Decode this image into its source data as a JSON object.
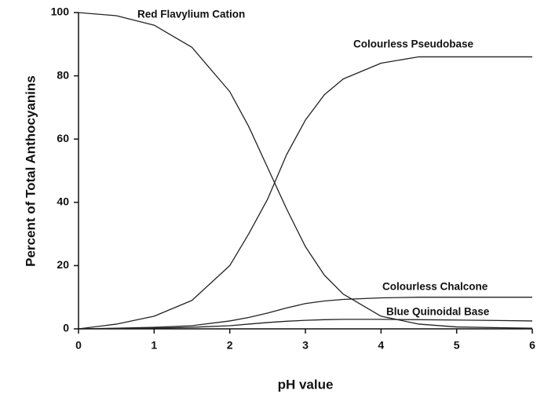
{
  "chart_data": {
    "type": "line",
    "x_label": "pH value",
    "y_label": "Percent of Total Anthocyanins",
    "x": [
      0,
      0.5,
      1,
      1.5,
      2,
      2.25,
      2.5,
      2.75,
      3,
      3.25,
      3.5,
      4,
      4.5,
      5,
      6
    ],
    "series": [
      {
        "name": "Red Flavylium Cation",
        "color": "#222222",
        "values": [
          100,
          99,
          96,
          89,
          75,
          64,
          51,
          38,
          26,
          17,
          11,
          4,
          1.5,
          0.6,
          0.2
        ]
      },
      {
        "name": "Colourless Pseudobase",
        "color": "#222222",
        "values": [
          0,
          1.5,
          4,
          9,
          20,
          30,
          41,
          55,
          66,
          74,
          79,
          84,
          86,
          86,
          86
        ]
      },
      {
        "name": "Colourless Chalcone",
        "color": "#222222",
        "values": [
          0,
          0.2,
          0.5,
          1,
          2.5,
          3.6,
          5,
          6.6,
          8,
          8.8,
          9.3,
          9.8,
          10,
          10,
          10
        ]
      },
      {
        "name": "Blue Quinoidal Base",
        "color": "#222222",
        "values": [
          0,
          0.1,
          0.2,
          0.5,
          1,
          1.5,
          2,
          2.4,
          2.7,
          2.9,
          3,
          3,
          2.9,
          2.8,
          2.5
        ]
      }
    ],
    "xlim": [
      0,
      6
    ],
    "xticks": [
      0,
      1,
      2,
      3,
      4,
      5,
      6
    ],
    "ylim": [
      0,
      100
    ],
    "yticks": [
      0,
      20,
      40,
      60,
      80,
      100
    ],
    "grid": false
  }
}
